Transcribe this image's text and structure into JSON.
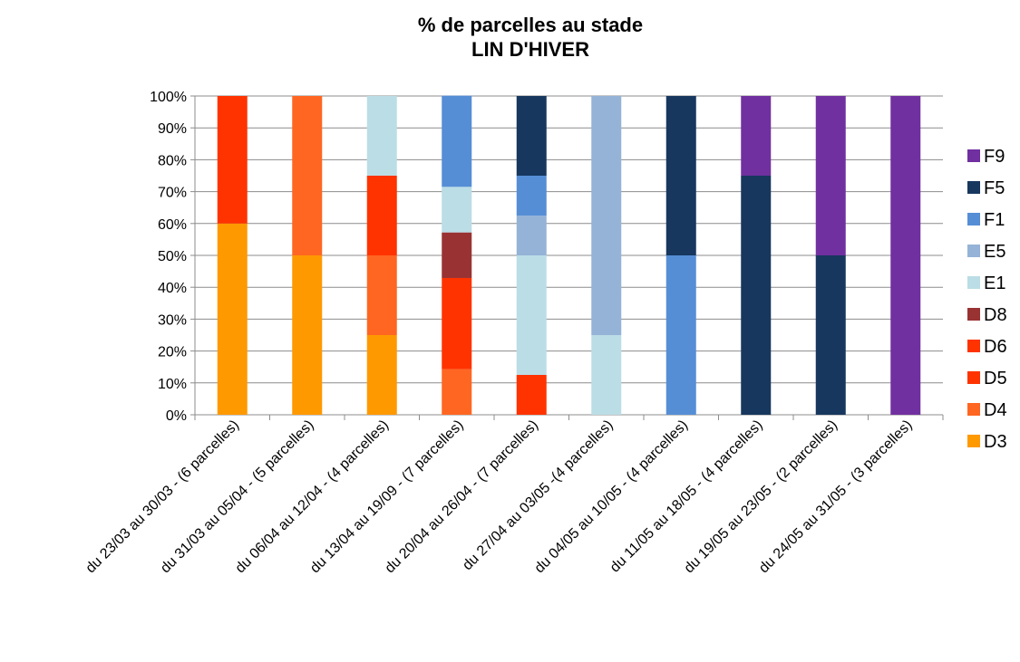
{
  "chart_data": {
    "type": "bar",
    "stacked": true,
    "percent": true,
    "title": [
      "% de parcelles au stade",
      "LIN D'HIVER"
    ],
    "categories": [
      "du 23/03 au 30/03 - (6 parcelles)",
      "du 31/03 au 05/04 - (5 parcelles)",
      "du 06/04 au 12/04 - (4 parcelles)",
      "du 13/04 au 19/09 - (7 parcelles)",
      "du 20/04 au 26/04 - (7 parcelles)",
      "du 27/04 au 03/05 -(4 parcelles)",
      "du 04/05 au 10/05 - (4 parcelles)",
      "du 11/05 au 18/05 - (4 parcelles)",
      "du 19/05 au 23/05 - (2 parcelles)",
      "du 24/05 au 31/05 - (3 parcelles)"
    ],
    "series": [
      {
        "name": "D3",
        "color": "#FF9900",
        "values": [
          60,
          50,
          25,
          0,
          0,
          0,
          0,
          0,
          0,
          0
        ]
      },
      {
        "name": "D4",
        "color": "#FF6622",
        "values": [
          0,
          50,
          25,
          14.3,
          0,
          0,
          0,
          0,
          0,
          0
        ]
      },
      {
        "name": "D5",
        "color": "#FF3300",
        "values": [
          40,
          0,
          25,
          28.6,
          12.5,
          0,
          0,
          0,
          0,
          0
        ]
      },
      {
        "name": "D6",
        "color": "#FF3300",
        "values": [
          0,
          0,
          0,
          0,
          0,
          0,
          0,
          0,
          0,
          0
        ]
      },
      {
        "name": "D8",
        "color": "#993333",
        "values": [
          0,
          0,
          0,
          14.3,
          0,
          0,
          0,
          0,
          0,
          0
        ]
      },
      {
        "name": "E1",
        "color": "#BBDDE6",
        "values": [
          0,
          0,
          25,
          14.3,
          37.5,
          25,
          0,
          0,
          0,
          0
        ]
      },
      {
        "name": "E5",
        "color": "#95B3D7",
        "values": [
          0,
          0,
          0,
          0,
          12.5,
          75,
          0,
          0,
          0,
          0
        ]
      },
      {
        "name": "F1",
        "color": "#558ED5",
        "values": [
          0,
          0,
          0,
          28.6,
          12.5,
          0,
          50,
          0,
          0,
          0
        ]
      },
      {
        "name": "F5",
        "color": "#17375E",
        "values": [
          0,
          0,
          0,
          0,
          25,
          0,
          50,
          75,
          50,
          0
        ]
      },
      {
        "name": "F9",
        "color": "#7030A0",
        "values": [
          0,
          0,
          0,
          0,
          0,
          0,
          0,
          25,
          50,
          100
        ]
      }
    ],
    "y_ticks": [
      "0%",
      "10%",
      "20%",
      "30%",
      "40%",
      "50%",
      "60%",
      "70%",
      "80%",
      "90%",
      "100%"
    ],
    "ylim": [
      0,
      100
    ],
    "grid": true,
    "legend_position": "right"
  }
}
